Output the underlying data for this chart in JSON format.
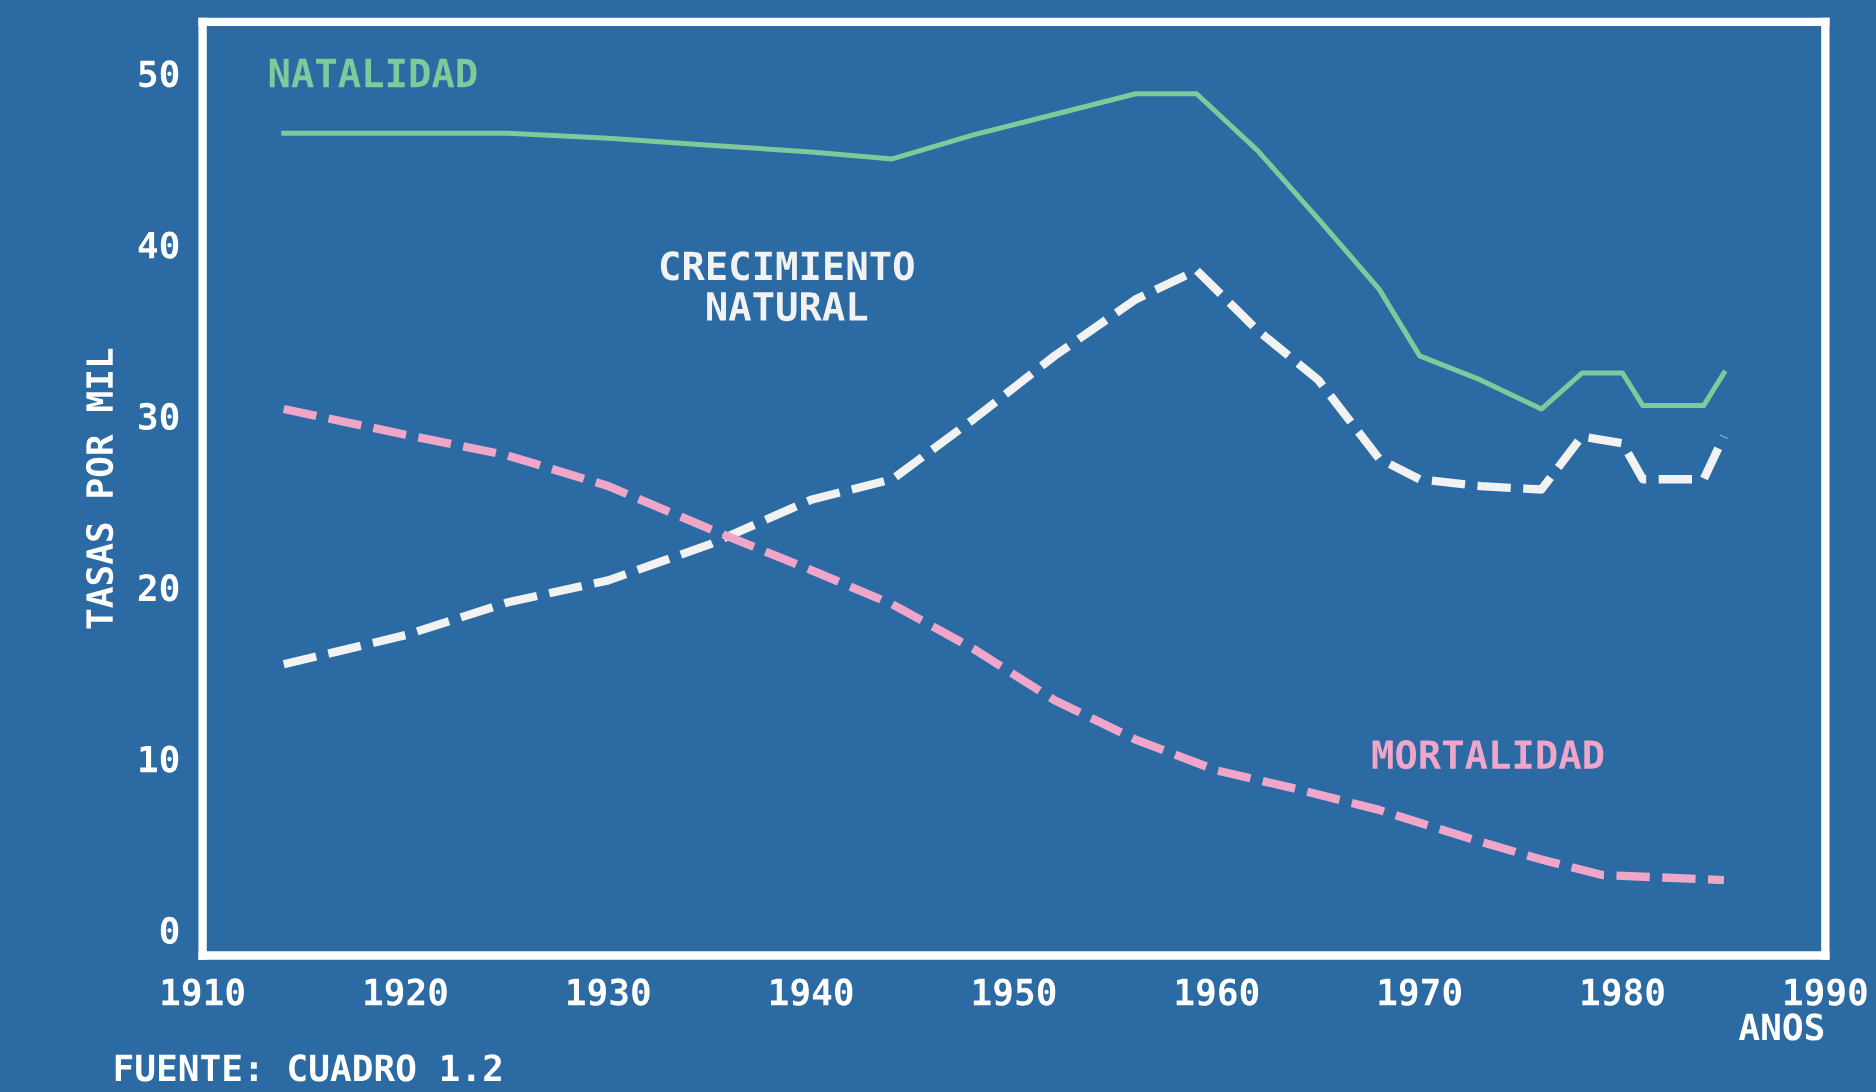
{
  "chart_data": {
    "type": "line",
    "xlabel": "ANOS",
    "ylabel": "TASAS POR MIL",
    "annotations": [
      "FUENTE: CUADRO 1.2"
    ],
    "xlim": [
      1910,
      1990
    ],
    "xticks": [
      1910,
      1920,
      1930,
      1940,
      1950,
      1960,
      1970,
      1980,
      1990
    ],
    "ylim": [
      -1.5,
      53
    ],
    "yticks": [
      0,
      10,
      20,
      30,
      40,
      50
    ],
    "grid": false,
    "legend": false,
    "marker": "none",
    "series": [
      {
        "name": "NATALIDAD",
        "color": "#7fc99a",
        "line_style": "solid",
        "x": [
          1914,
          1925,
          1930,
          1935,
          1940,
          1944,
          1948,
          1953,
          1956,
          1959,
          1962,
          1965,
          1968,
          1970,
          1973,
          1976,
          1978,
          1980,
          1981,
          1984,
          1985
        ],
        "values": [
          46.5,
          46.5,
          46.2,
          45.8,
          45.4,
          45,
          46.4,
          47.9,
          48.8,
          48.8,
          45.5,
          41.5,
          37.4,
          33.5,
          32.1,
          30.4,
          32.5,
          32.5,
          30.6,
          30.6,
          32.5
        ]
      },
      {
        "name": "CRECIMIENTO NATURAL",
        "color": "#f2f2f2",
        "line_style": "dashed",
        "x": [
          1914,
          1920,
          1925,
          1930,
          1935,
          1940,
          1944,
          1948,
          1952,
          1956,
          1959,
          1962,
          1965,
          1968,
          1970,
          1973,
          1976,
          1978,
          1980,
          1981,
          1984,
          1985
        ],
        "values": [
          15.5,
          17.2,
          19.1,
          20.4,
          22.5,
          25.1,
          26.3,
          29.8,
          33.5,
          36.8,
          38.5,
          35,
          32.1,
          27.5,
          26.3,
          25.9,
          25.7,
          28.8,
          28.4,
          26.3,
          26.3,
          28.8
        ]
      },
      {
        "name": "MORTALIDAD",
        "color": "#f0a6c8",
        "line_style": "dashed",
        "x": [
          1914,
          1920,
          1925,
          1930,
          1935,
          1940,
          1944,
          1948,
          1952,
          1956,
          1960,
          1964,
          1968,
          1972,
          1976,
          1979,
          1985
        ],
        "values": [
          30.4,
          28.9,
          27.7,
          25.9,
          23.4,
          21,
          19,
          16.4,
          13.4,
          11.1,
          9.3,
          8.2,
          7,
          5.5,
          4.1,
          3.2,
          2.9
        ]
      }
    ]
  }
}
